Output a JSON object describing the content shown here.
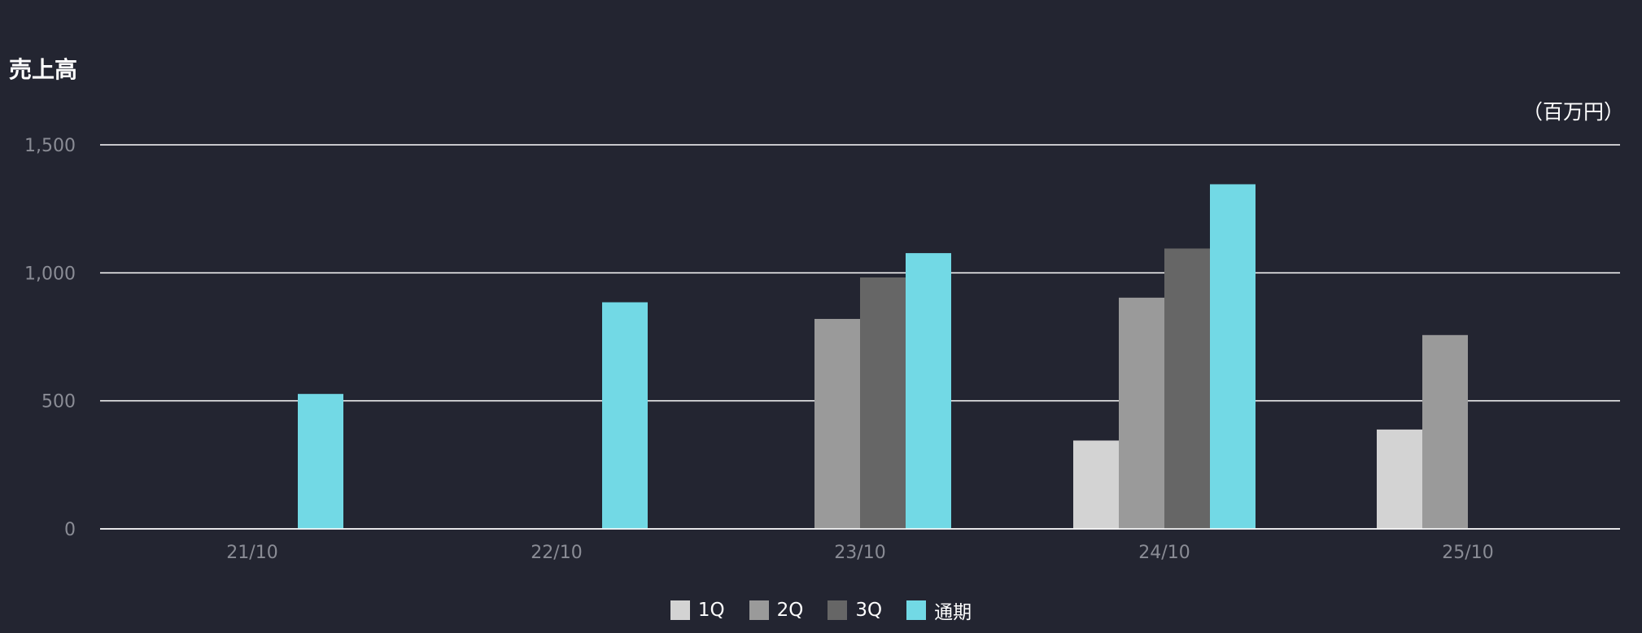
{
  "title": "売上高",
  "unit": "（百万円）",
  "colors": {
    "background": "#232531",
    "grid": "#ffffff",
    "tick": "#8a8c95",
    "q1": "#d3d3d3",
    "q2": "#9a9a9a",
    "q3": "#666666",
    "full": "#72d9e5"
  },
  "chart_data": {
    "type": "bar",
    "title": "売上高",
    "ylabel": "",
    "xlabel": "",
    "unit": "（百万円）",
    "categories": [
      "21/10",
      "22/10",
      "23/10",
      "24/10",
      "25/10"
    ],
    "ylim": [
      0,
      1500
    ],
    "yticks": [
      "0",
      "500",
      "1,000",
      "1,500"
    ],
    "ytick_values": [
      0,
      500,
      1000,
      1500
    ],
    "grid": true,
    "legend_position": "bottom-center",
    "series": [
      {
        "name": "1Q",
        "color": "#d3d3d3",
        "values": [
          null,
          null,
          null,
          345,
          388
        ]
      },
      {
        "name": "2Q",
        "color": "#9a9a9a",
        "values": [
          null,
          null,
          820,
          903,
          757
        ]
      },
      {
        "name": "3Q",
        "color": "#666666",
        "values": [
          null,
          null,
          982,
          1095,
          null
        ]
      },
      {
        "name": "通期",
        "color": "#72d9e5",
        "values": [
          527,
          885,
          1077,
          1346,
          null
        ]
      }
    ]
  }
}
